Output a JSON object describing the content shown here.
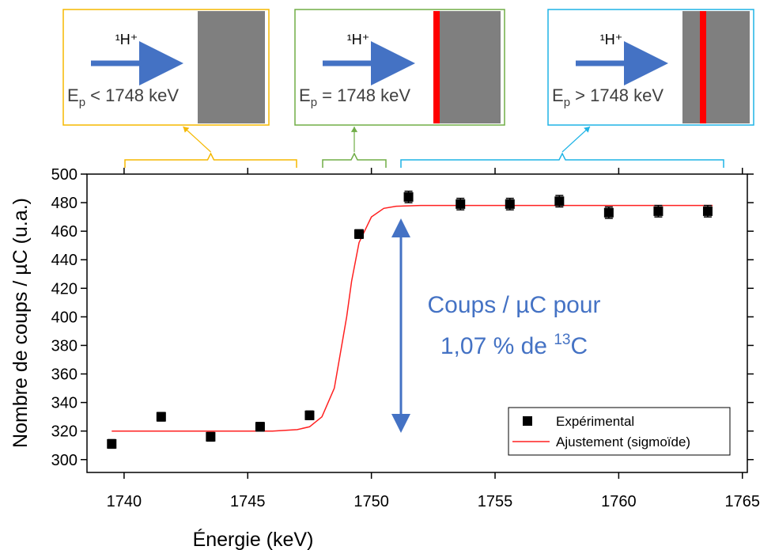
{
  "chart_data": {
    "type": "scatter",
    "x_label": "Énergie (keV)",
    "y_label": "Nombre de coups / µC (u.a.)",
    "xlim": [
      1738.5,
      1765.2
    ],
    "xticks": [
      1740,
      1745,
      1750,
      1755,
      1760,
      1765
    ],
    "ylim": [
      291,
      500
    ],
    "yticks": [
      300,
      320,
      340,
      360,
      380,
      400,
      420,
      440,
      460,
      480,
      500
    ],
    "legend": "lower right",
    "series": [
      {
        "name": "Expérimental",
        "type": "scatter",
        "color": "#000000",
        "x": [
          1739.5,
          1741.5,
          1743.5,
          1745.5,
          1747.5,
          1749.5,
          1751.5,
          1753.6,
          1755.6,
          1757.6,
          1759.6,
          1761.6,
          1763.6
        ],
        "values": [
          311,
          330,
          316,
          323,
          331,
          458,
          484,
          479,
          479,
          481,
          473,
          474,
          474
        ],
        "errors": [
          3,
          3,
          3,
          3,
          3,
          3,
          4,
          4,
          4,
          4,
          4,
          4,
          4
        ]
      },
      {
        "name": "Ajustement (sigmoïde)",
        "type": "line",
        "color": "#ff2020",
        "x": [
          1739.5,
          1746,
          1747,
          1747.5,
          1748,
          1748.5,
          1748.8,
          1749,
          1749.2,
          1749.5,
          1750,
          1750.5,
          1751,
          1752,
          1763.8
        ],
        "values": [
          320,
          320,
          321,
          323,
          330,
          350,
          380,
          400,
          425,
          452,
          470,
          476,
          477.5,
          478,
          478
        ]
      }
    ]
  },
  "annotations": {
    "panels": [
      {
        "label": "¹H⁺",
        "energy": {
          "symbol": "E",
          "subscript": "p",
          "text": " < 1748 keV"
        },
        "color": "#f5b800"
      },
      {
        "label": "¹H⁺",
        "energy": {
          "symbol": "E",
          "subscript": "p",
          "text": " = 1748 keV"
        },
        "color": "#70ad47"
      },
      {
        "label": "¹H⁺",
        "energy": {
          "symbol": "E",
          "subscript": "p",
          "text": " > 1748 keV"
        },
        "color": "#1fb4e6"
      }
    ],
    "arrow_text": {
      "line1": "Coups / µC pour",
      "line2": "1,07 % de ",
      "superscript": "13",
      "suffix": "C"
    }
  }
}
